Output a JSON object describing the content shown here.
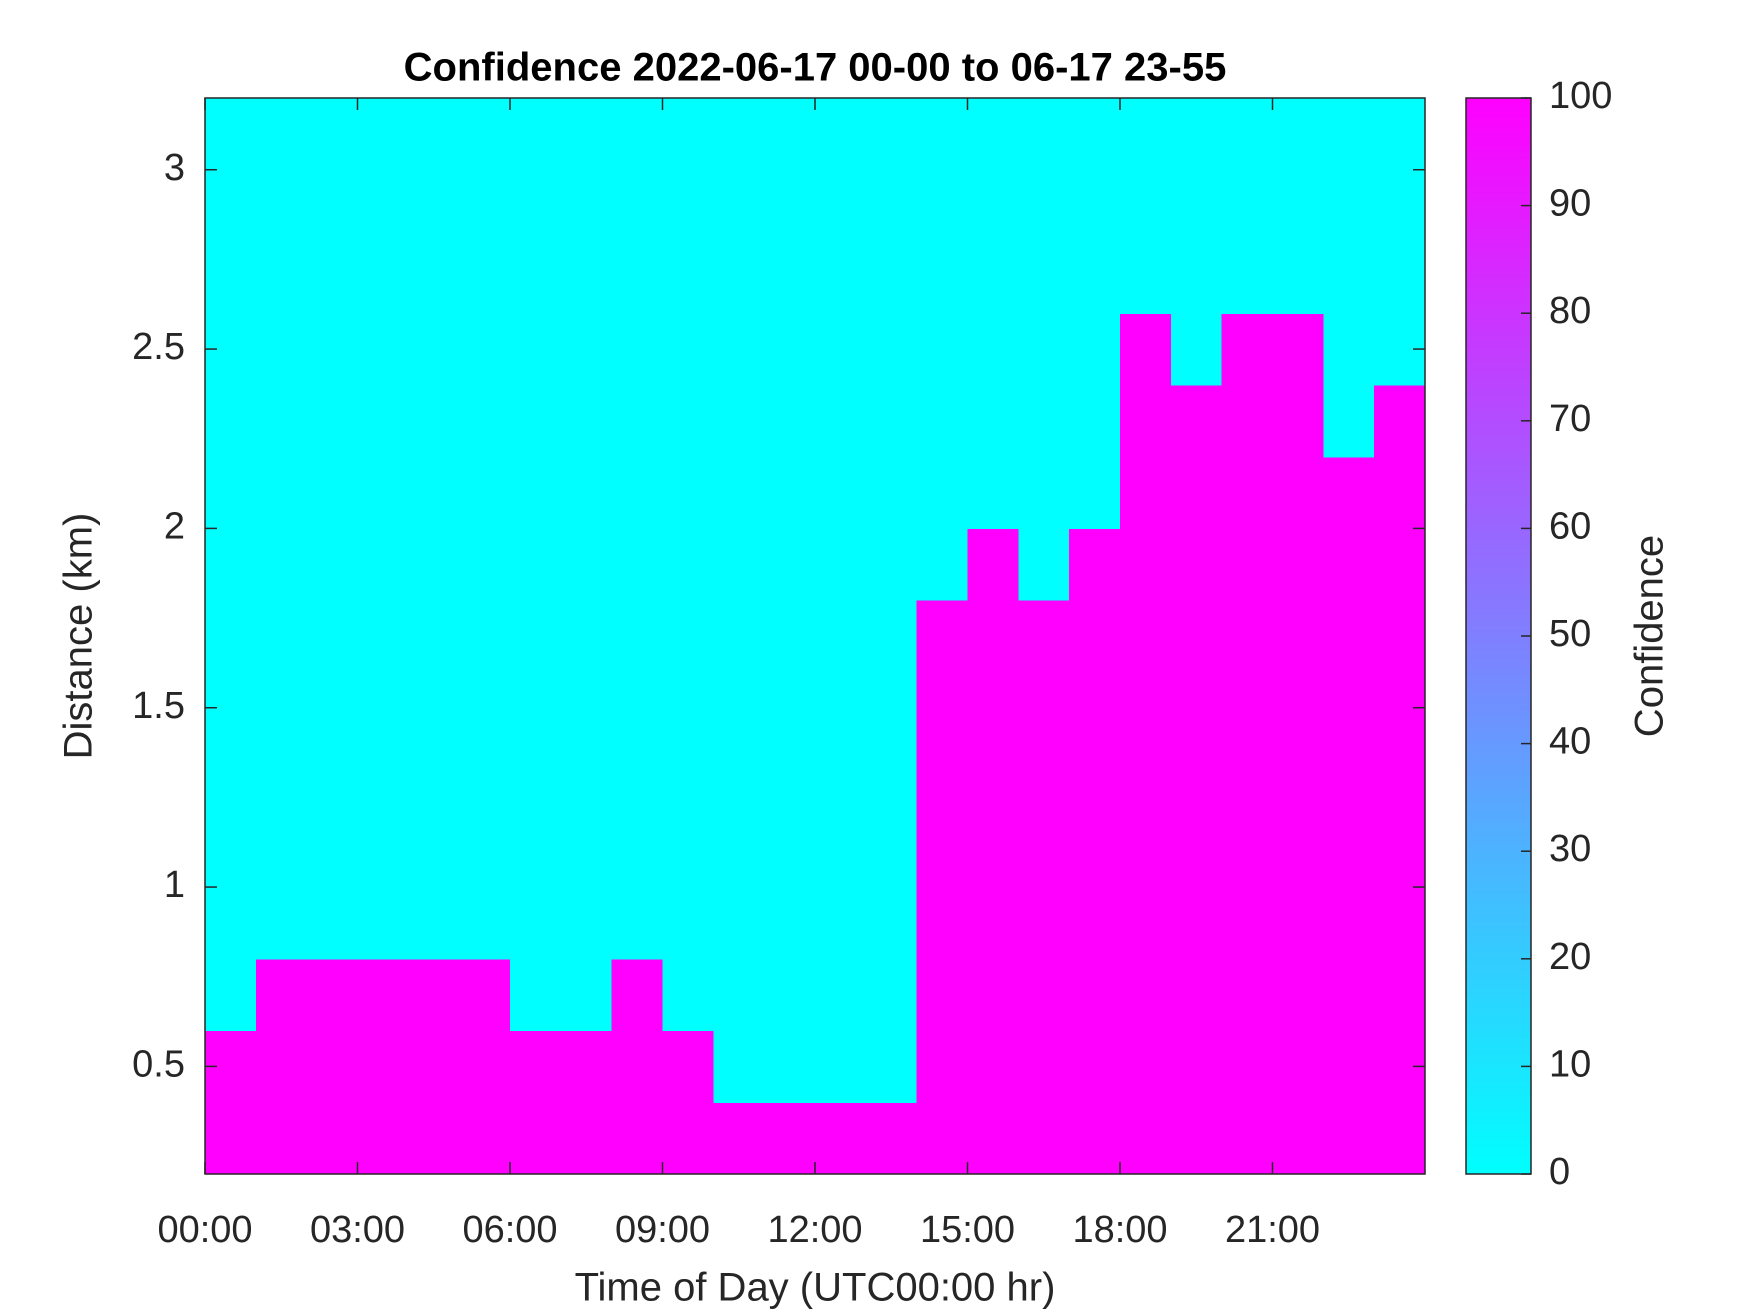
{
  "chart_data": {
    "type": "heatmap",
    "title": "Confidence 2022-06-17 00-00 to 06-17 23-55",
    "x_label": "Time of Day (UTC00:00 hr)",
    "y_label": "Distance (km)",
    "colorbar_label": "Confidence",
    "x_edges": [
      0,
      1,
      2,
      3,
      4,
      5,
      6,
      7,
      8,
      9,
      10,
      11,
      12,
      13,
      14,
      15,
      16,
      17,
      18,
      19,
      20,
      21,
      22,
      23,
      24
    ],
    "y_edges": [
      0.2,
      0.4,
      0.6,
      0.8,
      1.0,
      1.2,
      1.4,
      1.6,
      1.8,
      2.0,
      2.2,
      2.4,
      2.6,
      2.8,
      3.0,
      3.2
    ],
    "z": [
      [
        100,
        100,
        100,
        100,
        100,
        100,
        100,
        100,
        100,
        100,
        100,
        100,
        100,
        100,
        100,
        100,
        100,
        100,
        100,
        100,
        100,
        100,
        100,
        100
      ],
      [
        100,
        100,
        100,
        100,
        100,
        100,
        100,
        100,
        100,
        100,
        0,
        0,
        0,
        0,
        100,
        100,
        100,
        100,
        100,
        100,
        100,
        100,
        100,
        100
      ],
      [
        0,
        100,
        100,
        100,
        100,
        100,
        0,
        0,
        100,
        0,
        0,
        0,
        0,
        0,
        100,
        100,
        100,
        100,
        100,
        100,
        100,
        100,
        100,
        100
      ],
      [
        0,
        0,
        0,
        0,
        0,
        0,
        0,
        0,
        0,
        0,
        0,
        0,
        0,
        0,
        100,
        100,
        100,
        100,
        100,
        100,
        100,
        100,
        100,
        100
      ],
      [
        0,
        0,
        0,
        0,
        0,
        0,
        0,
        0,
        0,
        0,
        0,
        0,
        0,
        0,
        100,
        100,
        100,
        100,
        100,
        100,
        100,
        100,
        100,
        100
      ],
      [
        0,
        0,
        0,
        0,
        0,
        0,
        0,
        0,
        0,
        0,
        0,
        0,
        0,
        0,
        100,
        100,
        100,
        100,
        100,
        100,
        100,
        100,
        100,
        100
      ],
      [
        0,
        0,
        0,
        0,
        0,
        0,
        0,
        0,
        0,
        0,
        0,
        0,
        0,
        0,
        100,
        100,
        100,
        100,
        100,
        100,
        100,
        100,
        100,
        100
      ],
      [
        0,
        0,
        0,
        0,
        0,
        0,
        0,
        0,
        0,
        0,
        0,
        0,
        0,
        0,
        100,
        100,
        100,
        100,
        100,
        100,
        100,
        100,
        100,
        100
      ],
      [
        0,
        0,
        0,
        0,
        0,
        0,
        0,
        0,
        0,
        0,
        0,
        0,
        0,
        0,
        0,
        100,
        0,
        100,
        100,
        100,
        100,
        100,
        100,
        100
      ],
      [
        0,
        0,
        0,
        0,
        0,
        0,
        0,
        0,
        0,
        0,
        0,
        0,
        0,
        0,
        0,
        0,
        0,
        0,
        100,
        100,
        100,
        100,
        100,
        100
      ],
      [
        0,
        0,
        0,
        0,
        0,
        0,
        0,
        0,
        0,
        0,
        0,
        0,
        0,
        0,
        0,
        0,
        0,
        0,
        100,
        100,
        100,
        100,
        0,
        100
      ],
      [
        0,
        0,
        0,
        0,
        0,
        0,
        0,
        0,
        0,
        0,
        0,
        0,
        0,
        0,
        0,
        0,
        0,
        0,
        100,
        0,
        100,
        100,
        0,
        0
      ],
      [
        0,
        0,
        0,
        0,
        0,
        0,
        0,
        0,
        0,
        0,
        0,
        0,
        0,
        0,
        0,
        0,
        0,
        0,
        0,
        0,
        0,
        0,
        0,
        0
      ],
      [
        0,
        0,
        0,
        0,
        0,
        0,
        0,
        0,
        0,
        0,
        0,
        0,
        0,
        0,
        0,
        0,
        0,
        0,
        0,
        0,
        0,
        0,
        0,
        0
      ],
      [
        0,
        0,
        0,
        0,
        0,
        0,
        0,
        0,
        0,
        0,
        0,
        0,
        0,
        0,
        0,
        0,
        0,
        0,
        0,
        0,
        0,
        0,
        0,
        0
      ]
    ],
    "xlim": [
      0,
      24
    ],
    "xticks": [
      {
        "value": 0,
        "label": "00:00"
      },
      {
        "value": 3,
        "label": "03:00"
      },
      {
        "value": 6,
        "label": "06:00"
      },
      {
        "value": 9,
        "label": "09:00"
      },
      {
        "value": 12,
        "label": "12:00"
      },
      {
        "value": 15,
        "label": "15:00"
      },
      {
        "value": 18,
        "label": "18:00"
      },
      {
        "value": 21,
        "label": "21:00"
      }
    ],
    "ylim": [
      0.2,
      3.2
    ],
    "yticks": [
      0.5,
      1,
      1.5,
      2,
      2.5,
      3
    ],
    "clim": [
      0,
      100
    ],
    "cticks": [
      0,
      10,
      20,
      30,
      40,
      50,
      60,
      70,
      80,
      90,
      100
    ],
    "colormap": [
      "#00ffff",
      "#ff00ff"
    ]
  }
}
